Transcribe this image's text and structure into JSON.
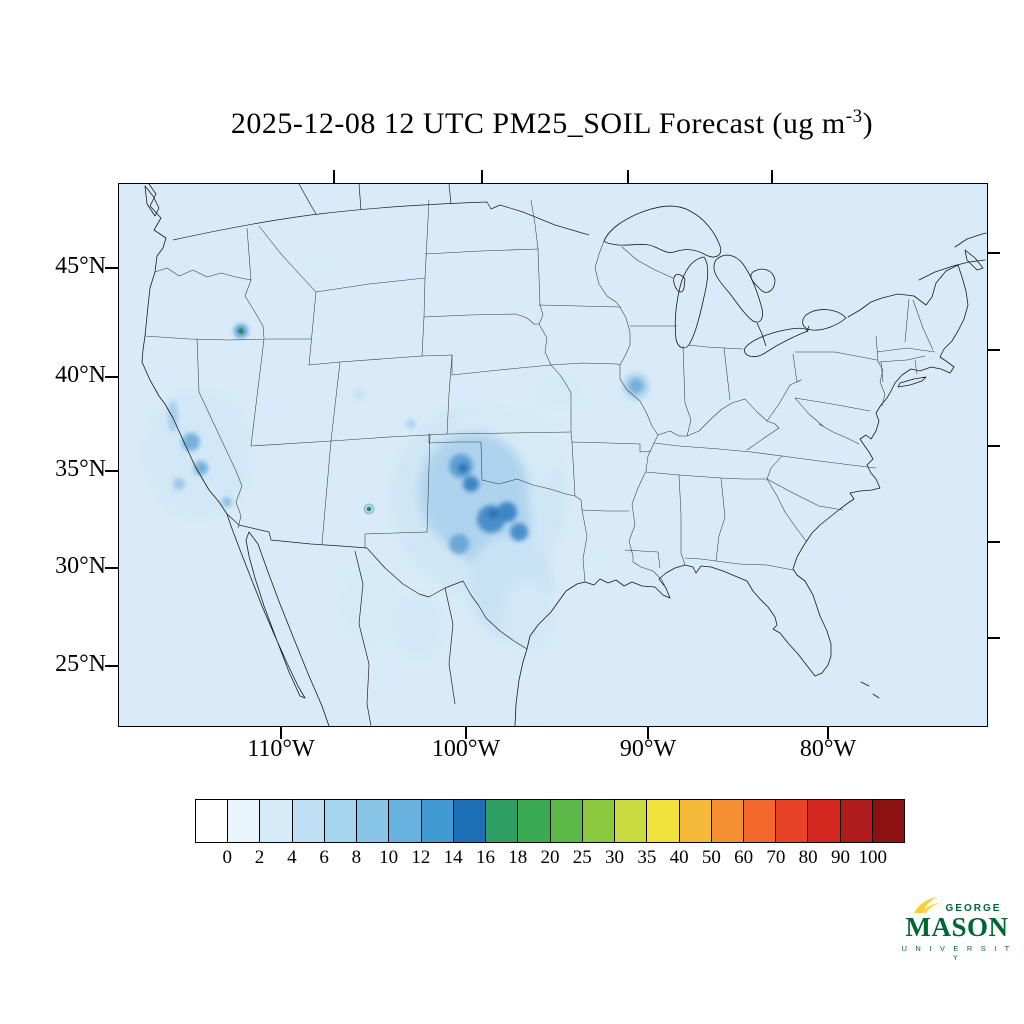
{
  "title": {
    "prefix": "2025-12-08 12 UTC PM25_SOIL Forecast (ug m",
    "superscript": "-3",
    "suffix": ")"
  },
  "axes": {
    "lat_labels": [
      "45°N",
      "40°N",
      "35°N",
      "30°N",
      "25°N"
    ],
    "lon_labels": [
      "110°W",
      "100°W",
      "90°W",
      "80°W"
    ]
  },
  "colorbar": {
    "labels": [
      "0",
      "2",
      "4",
      "6",
      "8",
      "10",
      "12",
      "14",
      "16",
      "18",
      "20",
      "25",
      "30",
      "35",
      "40",
      "50",
      "60",
      "70",
      "80",
      "90",
      "100"
    ],
    "colors": [
      "#ffffff",
      "#e9f5fc",
      "#d5ebf8",
      "#bfe0f4",
      "#a5d4ee",
      "#88c5e7",
      "#67b2de",
      "#429ad2",
      "#1d6fb5",
      "#2e9e62",
      "#3aab52",
      "#5cb947",
      "#8cc93f",
      "#c9db3e",
      "#f2e23c",
      "#f5b93a",
      "#f58f33",
      "#f2692b",
      "#e84326",
      "#d32720",
      "#b01b1b",
      "#8c1212"
    ]
  },
  "logo": {
    "line1": "GEORGE",
    "line2": "MASON",
    "line3": "U N I V E R S I T Y",
    "green": "#006633",
    "gold": "#FFCC33"
  },
  "chart_data": {
    "type": "heatmap",
    "title": "2025-12-08 12 UTC PM25_SOIL Forecast (ug m-3)",
    "variable": "PM25_SOIL",
    "valid_time": "2025-12-08 12 UTC",
    "units": "ug m-3",
    "region": "Continental United States with southern Canada and northern Mexico, Lambert-style projection",
    "colorbar_levels": [
      0,
      2,
      4,
      6,
      8,
      10,
      12,
      14,
      16,
      18,
      20,
      25,
      30,
      35,
      40,
      50,
      60,
      70,
      80,
      90,
      100
    ],
    "colorbar_colors": [
      "#ffffff",
      "#e9f5fc",
      "#d5ebf8",
      "#bfe0f4",
      "#a5d4ee",
      "#88c5e7",
      "#67b2de",
      "#429ad2",
      "#1d6fb5",
      "#2e9e62",
      "#3aab52",
      "#5cb947",
      "#8cc93f",
      "#c9db3e",
      "#f2e23c",
      "#f5b93a",
      "#f58f33",
      "#f2692b",
      "#e84326",
      "#d32720",
      "#b01b1b",
      "#8c1212"
    ],
    "lat_ticks": [
      "45°N",
      "40°N",
      "35°N",
      "30°N",
      "25°N"
    ],
    "lon_ticks": [
      "110°W",
      "100°W",
      "90°W",
      "80°W"
    ],
    "legend_position": "bottom",
    "features": [
      {
        "region": "Southern Great Plains: west Texas / Oklahoma / Kansas / eastern New Mexico",
        "approx_value_ug_m3": "2-12 with isolated cores ~10-14"
      },
      {
        "region": "South-central Texas toward Gulf coast",
        "approx_value_ug_m3": "2-6"
      },
      {
        "region": "Nevada and eastern California basins",
        "approx_value_ug_m3": "2-8"
      },
      {
        "region": "Snake River Plain, southern Idaho (small spot)",
        "approx_value_ug_m3": "8-16"
      },
      {
        "region": "North-central Colorado (tiny spot)",
        "approx_value_ug_m3": "14-18"
      },
      {
        "region": "Central Illinois (small area)",
        "approx_value_ug_m3": "4-8"
      },
      {
        "region": "Northern Mexico scattered",
        "approx_value_ug_m3": "2-4"
      },
      {
        "region": "Remainder of CONUS background",
        "approx_value_ug_m3": "0-2"
      }
    ]
  }
}
